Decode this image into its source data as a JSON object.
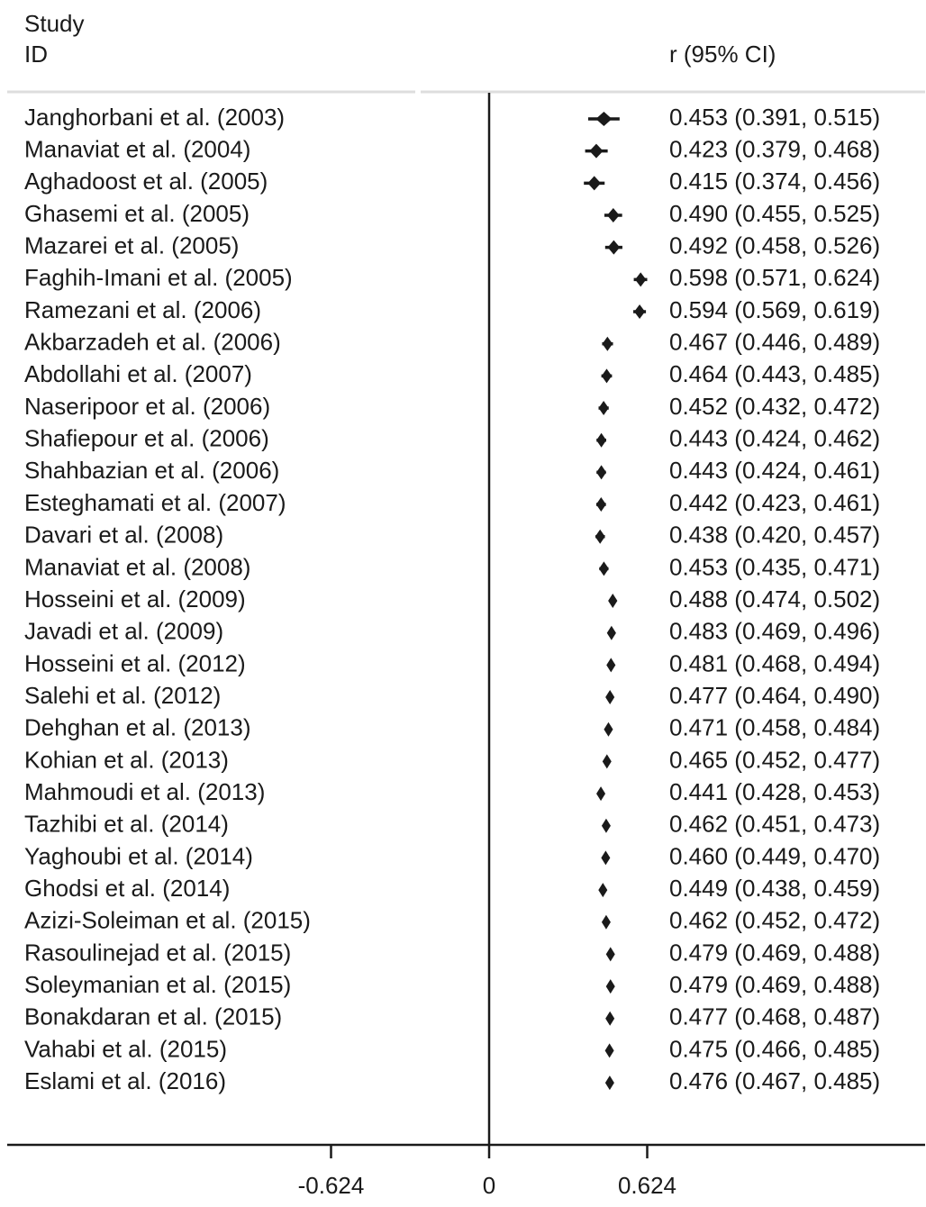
{
  "header": {
    "study_label": "Study",
    "id_label": "ID",
    "effect_label": "r (95% CI)"
  },
  "colors": {
    "text": "#1a1a1a",
    "marker": "#1a1a1a",
    "separator": "#dddddd"
  },
  "chart_data": {
    "type": "forest",
    "x_ticks": [
      {
        "value": -0.624,
        "label": "-0.624"
      },
      {
        "value": 0,
        "label": "0"
      },
      {
        "value": 0.624,
        "label": "0.624"
      }
    ],
    "xlim": [
      -1.31,
      1.55
    ],
    "studies": [
      {
        "label": "Janghorbani et al. (2003)",
        "r": 0.453,
        "lo": 0.391,
        "hi": 0.515,
        "text": "0.453 (0.391, 0.515)"
      },
      {
        "label": "Manaviat et al. (2004)",
        "r": 0.423,
        "lo": 0.379,
        "hi": 0.468,
        "text": "0.423 (0.379, 0.468)"
      },
      {
        "label": "Aghadoost et al. (2005)",
        "r": 0.415,
        "lo": 0.374,
        "hi": 0.456,
        "text": "0.415 (0.374, 0.456)"
      },
      {
        "label": "Ghasemi et al. (2005)",
        "r": 0.49,
        "lo": 0.455,
        "hi": 0.525,
        "text": "0.490 (0.455, 0.525)"
      },
      {
        "label": "Mazarei et al. (2005)",
        "r": 0.492,
        "lo": 0.458,
        "hi": 0.526,
        "text": "0.492 (0.458, 0.526)"
      },
      {
        "label": "Faghih-Imani et al. (2005)",
        "r": 0.598,
        "lo": 0.571,
        "hi": 0.624,
        "text": "0.598 (0.571, 0.624)"
      },
      {
        "label": "Ramezani et al. (2006)",
        "r": 0.594,
        "lo": 0.569,
        "hi": 0.619,
        "text": "0.594 (0.569, 0.619)"
      },
      {
        "label": "Akbarzadeh et al. (2006)",
        "r": 0.467,
        "lo": 0.446,
        "hi": 0.489,
        "text": "0.467 (0.446, 0.489)"
      },
      {
        "label": "Abdollahi et al. (2007)",
        "r": 0.464,
        "lo": 0.443,
        "hi": 0.485,
        "text": "0.464 (0.443, 0.485)"
      },
      {
        "label": "Naseripoor et al. (2006)",
        "r": 0.452,
        "lo": 0.432,
        "hi": 0.472,
        "text": "0.452 (0.432, 0.472)"
      },
      {
        "label": "Shafiepour et al. (2006)",
        "r": 0.443,
        "lo": 0.424,
        "hi": 0.462,
        "text": "0.443 (0.424, 0.462)"
      },
      {
        "label": "Shahbazian et al. (2006)",
        "r": 0.443,
        "lo": 0.424,
        "hi": 0.461,
        "text": "0.443 (0.424, 0.461)"
      },
      {
        "label": "Esteghamati et al. (2007)",
        "r": 0.442,
        "lo": 0.423,
        "hi": 0.461,
        "text": "0.442 (0.423, 0.461)"
      },
      {
        "label": "Davari et al. (2008)",
        "r": 0.438,
        "lo": 0.42,
        "hi": 0.457,
        "text": "0.438 (0.420, 0.457)"
      },
      {
        "label": "Manaviat et al. (2008)",
        "r": 0.453,
        "lo": 0.435,
        "hi": 0.471,
        "text": "0.453 (0.435, 0.471)"
      },
      {
        "label": "Hosseini et al. (2009)",
        "r": 0.488,
        "lo": 0.474,
        "hi": 0.502,
        "text": "0.488 (0.474, 0.502)"
      },
      {
        "label": "Javadi et al. (2009)",
        "r": 0.483,
        "lo": 0.469,
        "hi": 0.496,
        "text": "0.483 (0.469, 0.496)"
      },
      {
        "label": "Hosseini et al. (2012)",
        "r": 0.481,
        "lo": 0.468,
        "hi": 0.494,
        "text": "0.481 (0.468, 0.494)"
      },
      {
        "label": "Salehi et al. (2012)",
        "r": 0.477,
        "lo": 0.464,
        "hi": 0.49,
        "text": "0.477 (0.464, 0.490)"
      },
      {
        "label": "Dehghan et al. (2013)",
        "r": 0.471,
        "lo": 0.458,
        "hi": 0.484,
        "text": "0.471 (0.458, 0.484)"
      },
      {
        "label": "Kohian et al. (2013)",
        "r": 0.465,
        "lo": 0.452,
        "hi": 0.477,
        "text": "0.465 (0.452, 0.477)"
      },
      {
        "label": "Mahmoudi et al. (2013)",
        "r": 0.441,
        "lo": 0.428,
        "hi": 0.453,
        "text": "0.441 (0.428, 0.453)"
      },
      {
        "label": "Tazhibi et al. (2014)",
        "r": 0.462,
        "lo": 0.451,
        "hi": 0.473,
        "text": "0.462 (0.451, 0.473)"
      },
      {
        "label": "Yaghoubi et al. (2014)",
        "r": 0.46,
        "lo": 0.449,
        "hi": 0.47,
        "text": "0.460 (0.449, 0.470)"
      },
      {
        "label": "Ghodsi et al. (2014)",
        "r": 0.449,
        "lo": 0.438,
        "hi": 0.459,
        "text": "0.449 (0.438, 0.459)"
      },
      {
        "label": "Azizi-Soleiman et al. (2015)",
        "r": 0.462,
        "lo": 0.452,
        "hi": 0.472,
        "text": "0.462 (0.452, 0.472)"
      },
      {
        "label": "Rasoulinejad et al. (2015)",
        "r": 0.479,
        "lo": 0.469,
        "hi": 0.488,
        "text": "0.479 (0.469, 0.488)"
      },
      {
        "label": "Soleymanian et al. (2015)",
        "r": 0.479,
        "lo": 0.469,
        "hi": 0.488,
        "text": "0.479 (0.469, 0.488)"
      },
      {
        "label": "Bonakdaran et al. (2015)",
        "r": 0.477,
        "lo": 0.468,
        "hi": 0.487,
        "text": "0.477 (0.468, 0.487)"
      },
      {
        "label": "Vahabi et al. (2015)",
        "r": 0.475,
        "lo": 0.466,
        "hi": 0.485,
        "text": "0.475 (0.466, 0.485)"
      },
      {
        "label": "Eslami et al. (2016)",
        "r": 0.476,
        "lo": 0.467,
        "hi": 0.485,
        "text": "0.476 (0.467, 0.485)"
      }
    ]
  }
}
